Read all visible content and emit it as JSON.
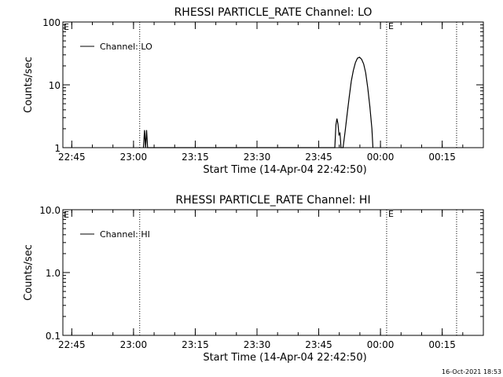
{
  "footer": {
    "timestamp": "16-Oct-2021 18:53"
  },
  "chart_data": [
    {
      "type": "line",
      "title": "RHESSI PARTICLE_RATE Channel: LO",
      "xlabel": "Start Time (14-Apr-04 22:42:50)",
      "ylabel": "Counts/sec",
      "yscale": "log",
      "xlim": [
        "22:42:50",
        "00:25:00"
      ],
      "ylim": [
        1,
        100
      ],
      "x_ticks": [
        "22:45",
        "23:00",
        "23:15",
        "23:30",
        "23:45",
        "00:00",
        "00:15"
      ],
      "y_ticks": [
        "1",
        "10",
        "100"
      ],
      "legend": {
        "position": "top-left",
        "entries": [
          "Channel: LO"
        ]
      },
      "event_markers": [
        {
          "time": "23:01:30",
          "label": ""
        },
        {
          "time": "00:01:30",
          "label": "E"
        },
        {
          "time": "00:18:30",
          "label": ""
        }
      ],
      "left_label": "E",
      "series": [
        {
          "name": "Channel: LO",
          "points": [
            [
              "23:02:25",
              1
            ],
            [
              "23:02:40",
              1.9
            ],
            [
              "23:02:55",
              1
            ],
            [
              "23:03:10",
              1.9
            ],
            [
              "23:03:25",
              1
            ],
            [
              "23:48:55",
              1
            ],
            [
              "23:49:10",
              2.3
            ],
            [
              "23:49:25",
              2.9
            ],
            [
              "23:49:40",
              2.4
            ],
            [
              "23:49:55",
              1.6
            ],
            [
              "23:50:10",
              1.7
            ],
            [
              "23:50:25",
              1
            ],
            [
              "23:50:55",
              1
            ],
            [
              "23:51:25",
              1.8
            ],
            [
              "23:51:55",
              3.5
            ],
            [
              "23:52:25",
              6.5
            ],
            [
              "23:52:55",
              11.5
            ],
            [
              "23:53:25",
              17
            ],
            [
              "23:53:55",
              22.5
            ],
            [
              "23:54:25",
              26.5
            ],
            [
              "23:54:55",
              27.5
            ],
            [
              "23:55:25",
              25.5
            ],
            [
              "23:55:55",
              21.5
            ],
            [
              "23:56:25",
              15.5
            ],
            [
              "23:56:55",
              9
            ],
            [
              "23:57:25",
              4.5
            ],
            [
              "23:57:55",
              2
            ],
            [
              "23:58:10",
              1
            ]
          ]
        }
      ]
    },
    {
      "type": "line",
      "title": "RHESSI PARTICLE_RATE Channel: HI",
      "xlabel": "Start Time (14-Apr-04 22:42:50)",
      "ylabel": "Counts/sec",
      "yscale": "log",
      "xlim": [
        "22:42:50",
        "00:25:00"
      ],
      "ylim": [
        0.1,
        10
      ],
      "x_ticks": [
        "22:45",
        "23:00",
        "23:15",
        "23:30",
        "23:45",
        "00:00",
        "00:15"
      ],
      "y_ticks": [
        "0.1",
        "1.0",
        "10.0"
      ],
      "legend": {
        "position": "top-left",
        "entries": [
          "Channel: HI"
        ]
      },
      "event_markers": [
        {
          "time": "23:01:30",
          "label": ""
        },
        {
          "time": "00:01:30",
          "label": "E"
        },
        {
          "time": "00:18:30",
          "label": ""
        }
      ],
      "left_label": "E",
      "series": [
        {
          "name": "Channel: HI",
          "points": []
        }
      ]
    }
  ]
}
